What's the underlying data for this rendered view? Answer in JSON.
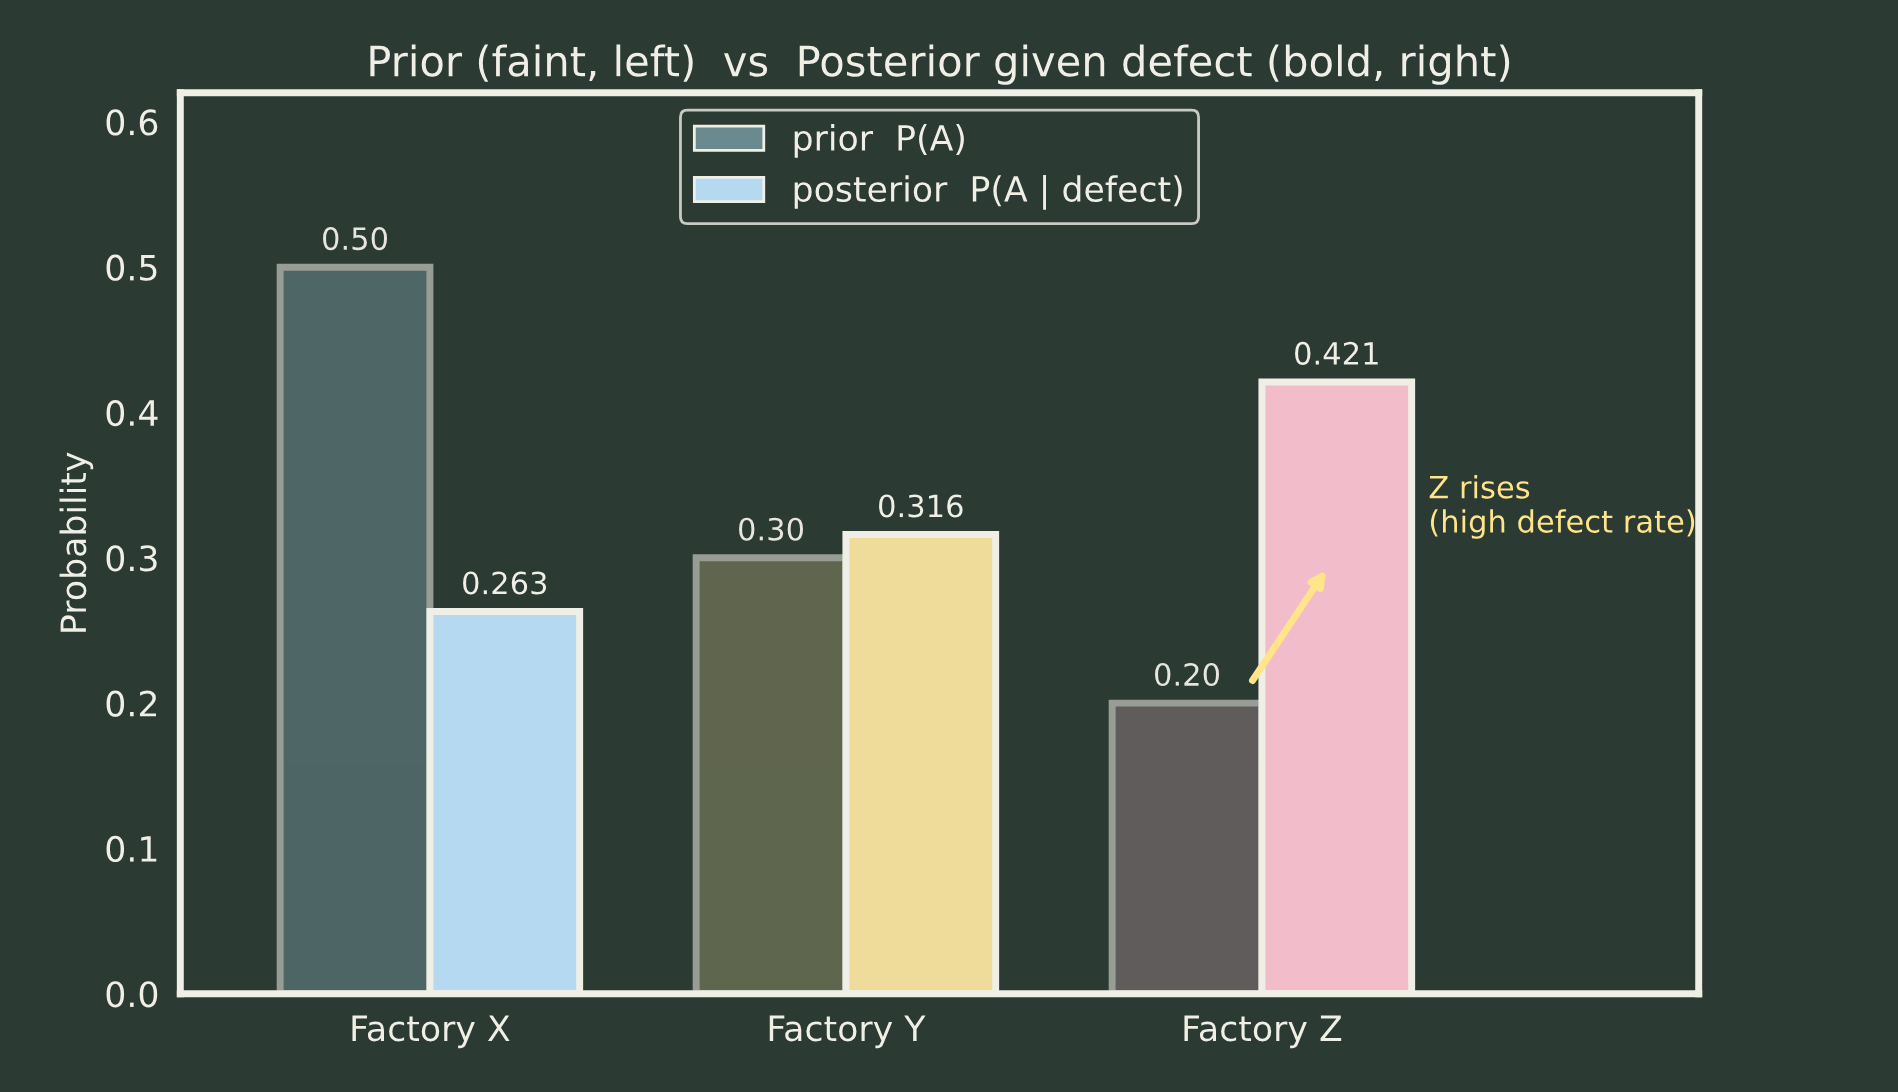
{
  "chart_data": {
    "type": "bar",
    "title": "Prior (faint, left)  vs  Posterior given defect (bold, right)",
    "ylabel": "Probability",
    "categories": [
      "Factory X",
      "Factory Y",
      "Factory Z"
    ],
    "series": [
      {
        "name": "prior  P(A)",
        "colors": [
          "#6b8a8f",
          "#8a8a64",
          "#8a787d"
        ],
        "values": [
          0.5,
          0.3,
          0.2
        ],
        "value_labels": [
          "0.50",
          "0.30",
          "0.20"
        ]
      },
      {
        "name": "posterior  P(A | defect)",
        "colors": [
          "#b5d9f0",
          "#f0dc9a",
          "#f2bccb"
        ],
        "values": [
          0.263,
          0.316,
          0.421
        ],
        "value_labels": [
          "0.263",
          "0.316",
          "0.421"
        ]
      }
    ],
    "ylim": [
      0,
      0.62
    ],
    "yticks": [
      {
        "value": 0,
        "label": "0.0"
      },
      {
        "value": 0.1,
        "label": "0.1"
      },
      {
        "value": 0.2,
        "label": "0.2"
      },
      {
        "value": 0.3,
        "label": "0.3"
      },
      {
        "value": 0.4,
        "label": "0.4"
      },
      {
        "value": 0.5,
        "label": "0.5"
      },
      {
        "value": 0.6,
        "label": "0.6"
      }
    ],
    "annotations": [
      "Z rises\n(high defect rate)"
    ],
    "grid": false,
    "legend": "top"
  }
}
